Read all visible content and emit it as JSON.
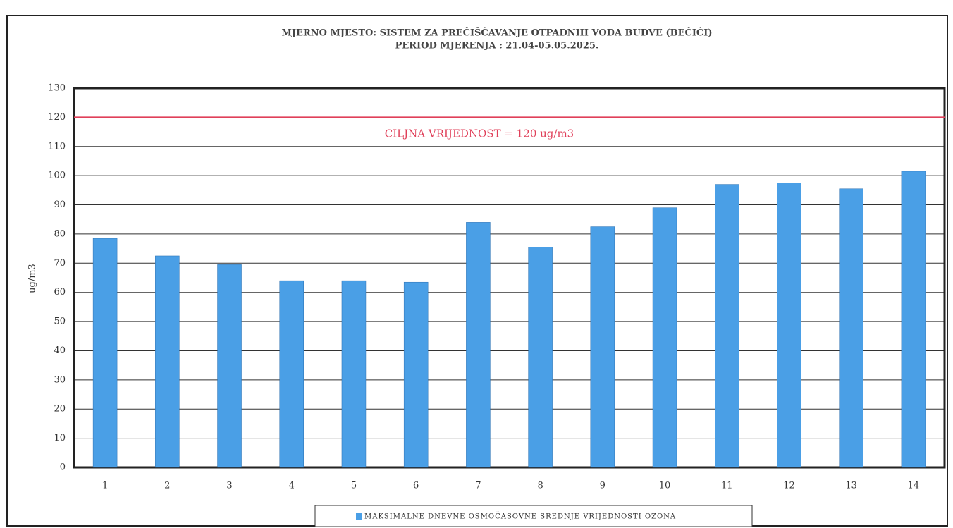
{
  "chart_data": {
    "type": "bar",
    "title": "MJERNO MJESTO: SISTEM ZA PREČIŠĆAVANJE  OTPADNIH VODA BUDVE (BEČIĆI)",
    "subtitle": "PERIOD MJERENJA : 21.04-05.05.2025.",
    "y_label": "ug/m3",
    "categories": [
      "1",
      "2",
      "3",
      "4",
      "5",
      "6",
      "7",
      "8",
      "9",
      "10",
      "11",
      "12",
      "13",
      "14"
    ],
    "series": [
      {
        "name": "MAKSIMALNE DNEVNE OSMOČASOVNE SREDNJE VRIJEDNOSTI OZONA",
        "color": "#4a9fe6",
        "values": [
          78.5,
          72.5,
          69.5,
          64,
          64,
          63.5,
          84,
          75.5,
          82.5,
          89,
          97,
          97.5,
          95.5,
          101.5
        ]
      }
    ],
    "target_line": {
      "value": 120,
      "label": "CILJNA VRIJEDNOST = 120 ug/m3",
      "color": "#e0405a"
    },
    "ylim": [
      0,
      130
    ],
    "yticks": [
      0,
      10,
      20,
      30,
      40,
      50,
      60,
      70,
      80,
      90,
      100,
      110,
      120,
      130
    ],
    "grid": true
  }
}
